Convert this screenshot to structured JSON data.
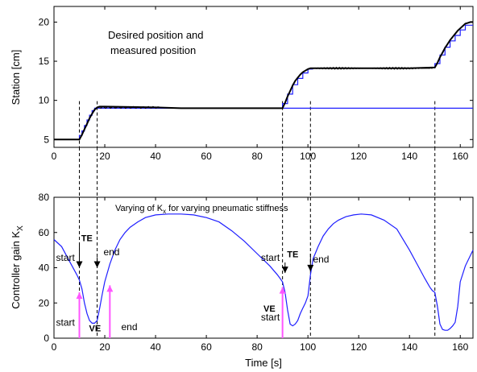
{
  "chart_data": [
    {
      "type": "line",
      "title": "",
      "xlabel": "",
      "ylabel": "Station [cm]",
      "xlim": [
        0,
        165
      ],
      "ylim": [
        4,
        22
      ],
      "xticks": [
        0,
        20,
        40,
        60,
        80,
        100,
        120,
        140,
        160
      ],
      "yticks": [
        5,
        10,
        15,
        20
      ],
      "annotation": {
        "line1": "Desired position and",
        "line2": "measured position"
      },
      "colors": {
        "desired": "#000000",
        "measured": "#1f1fff"
      },
      "series": [
        {
          "role": "desired",
          "x": [
            0,
            10,
            11,
            12,
            13,
            14,
            15,
            16,
            17,
            18,
            20,
            30,
            40,
            50,
            60,
            70,
            80,
            90,
            91,
            92,
            93,
            94,
            95,
            96,
            97,
            98,
            99,
            100,
            101,
            102,
            110,
            120,
            130,
            140,
            150,
            151,
            152,
            153,
            154,
            155,
            156,
            157,
            158,
            159,
            160,
            161,
            162,
            163,
            164,
            165
          ],
          "y": [
            5,
            5,
            5.6,
            6.3,
            7.0,
            7.7,
            8.3,
            8.8,
            9.1,
            9.2,
            9.2,
            9.15,
            9.1,
            9.0,
            9.0,
            9.0,
            9.0,
            9.0,
            9.7,
            10.5,
            11.2,
            11.9,
            12.5,
            12.9,
            13.3,
            13.6,
            13.8,
            14.0,
            14.1,
            14.1,
            14.1,
            14.1,
            14.1,
            14.1,
            14.2,
            14.8,
            15.5,
            16.1,
            16.7,
            17.2,
            17.7,
            18.1,
            18.5,
            18.9,
            19.2,
            19.5,
            19.8,
            19.9,
            20.0,
            20.0
          ]
        },
        {
          "role": "measured",
          "x": [
            0,
            10,
            10,
            11,
            11,
            12,
            12,
            13,
            13,
            14,
            14,
            15,
            15,
            16,
            16,
            17,
            17,
            165
          ],
          "y": [
            5,
            5,
            5.5,
            5.5,
            6.1,
            6.1,
            6.8,
            6.8,
            7.5,
            7.5,
            8.1,
            8.1,
            8.7,
            8.7,
            9.0,
            9.0,
            9.0,
            9.0
          ],
          "steps": [
            {
              "x": [
                90,
                90,
                92,
                92,
                94,
                94,
                96,
                96,
                98,
                98,
                100,
                100,
                102
              ],
              "y": [
                9.0,
                9.6,
                9.6,
                10.8,
                10.8,
                12.0,
                12.0,
                12.8,
                12.8,
                13.5,
                13.5,
                14.0,
                14.0
              ]
            },
            {
              "x": [
                150,
                150,
                152,
                152,
                154,
                154,
                156,
                156,
                158,
                158,
                160,
                160,
                162,
                162,
                165
              ],
              "y": [
                14.1,
                14.7,
                14.7,
                15.8,
                15.8,
                16.8,
                16.8,
                17.6,
                17.6,
                18.3,
                18.3,
                19.0,
                19.0,
                19.6,
                19.6
              ]
            }
          ]
        }
      ],
      "vlines": [
        10,
        17,
        90,
        101,
        150
      ]
    },
    {
      "type": "line",
      "title": "",
      "xlabel": "Time [s]",
      "ylabel": "Controller gain K",
      "ylabel_sub": "X",
      "xlim": [
        0,
        165
      ],
      "ylim": [
        0,
        80
      ],
      "xticks": [
        0,
        20,
        40,
        60,
        80,
        100,
        120,
        140,
        160
      ],
      "yticks": [
        0,
        20,
        40,
        60,
        80
      ],
      "annotation": {
        "pre": "Varying of K",
        "sub": "x",
        "post": " for varying pneumatic stiffness"
      },
      "colors": {
        "gain": "#1f1fff",
        "arrow_black": "#000000",
        "arrow_magenta": "#ff55ff"
      },
      "series": [
        {
          "x": [
            0,
            3,
            6,
            9,
            10,
            11,
            12,
            13,
            14,
            15,
            16,
            17,
            18,
            19,
            20,
            22,
            24,
            26,
            28,
            30,
            33,
            36,
            40,
            45,
            50,
            55,
            60,
            65,
            70,
            75,
            80,
            85,
            88,
            89,
            90,
            91,
            92,
            93,
            94,
            95,
            96,
            97,
            98,
            99,
            100,
            101,
            102,
            104,
            106,
            108,
            110,
            112,
            115,
            118,
            121,
            125,
            130,
            135,
            140,
            143,
            146,
            148,
            149,
            150,
            151,
            152,
            153,
            154,
            155,
            156,
            157,
            158,
            159,
            160,
            162,
            165
          ],
          "y": [
            56,
            52,
            44,
            36,
            33,
            28,
            20,
            14,
            10,
            8.5,
            8.5,
            10,
            17,
            25,
            32,
            42,
            50,
            56,
            60,
            63,
            66,
            68.5,
            70,
            70.5,
            70.5,
            70,
            68.5,
            66,
            61,
            55,
            48,
            41,
            36,
            34,
            32,
            26,
            16,
            8,
            7,
            8,
            10,
            14,
            17,
            20,
            24,
            36,
            45,
            52,
            58,
            62,
            65,
            67,
            69,
            70,
            70.5,
            70,
            67,
            62,
            50,
            42,
            34,
            29,
            27,
            26,
            18,
            8,
            5,
            4.5,
            4.5,
            5.5,
            7,
            9,
            18,
            32,
            41,
            50
          ]
        }
      ],
      "labels": [
        {
          "text": "start",
          "x": 0.8,
          "y": 44
        },
        {
          "text": "TE",
          "x": 10.7,
          "y": 55,
          "bold": true
        },
        {
          "text": "end",
          "x": 19.5,
          "y": 47
        },
        {
          "text": "start",
          "x": 0.8,
          "y": 7
        },
        {
          "text": "VE",
          "x": 13.8,
          "y": 4,
          "bold": true
        },
        {
          "text": "end",
          "x": 26.5,
          "y": 4.5
        },
        {
          "text": "start",
          "x": 81.5,
          "y": 44
        },
        {
          "text": "TE",
          "x": 91.8,
          "y": 46,
          "bold": true
        },
        {
          "text": "end",
          "x": 102,
          "y": 43
        },
        {
          "text": "VE",
          "x": 82.5,
          "y": 15,
          "bold": true
        },
        {
          "text": "start",
          "x": 81.5,
          "y": 10
        }
      ],
      "arrows_black": [
        {
          "x": 10,
          "y_from": 54,
          "y_to": 40
        },
        {
          "x": 17,
          "y_from": 46,
          "y_to": 40
        },
        {
          "x": 91,
          "y_from": 43,
          "y_to": 37
        },
        {
          "x": 101,
          "y_from": 48,
          "y_to": 38
        }
      ],
      "arrows_magenta": [
        {
          "x": 10,
          "y_from": 0,
          "y_to": 26
        },
        {
          "x": 22,
          "y_from": 0,
          "y_to": 30
        },
        {
          "x": 90,
          "y_from": 0,
          "y_to": 29
        }
      ],
      "vlines": [
        10,
        17,
        90,
        101,
        150
      ]
    }
  ]
}
